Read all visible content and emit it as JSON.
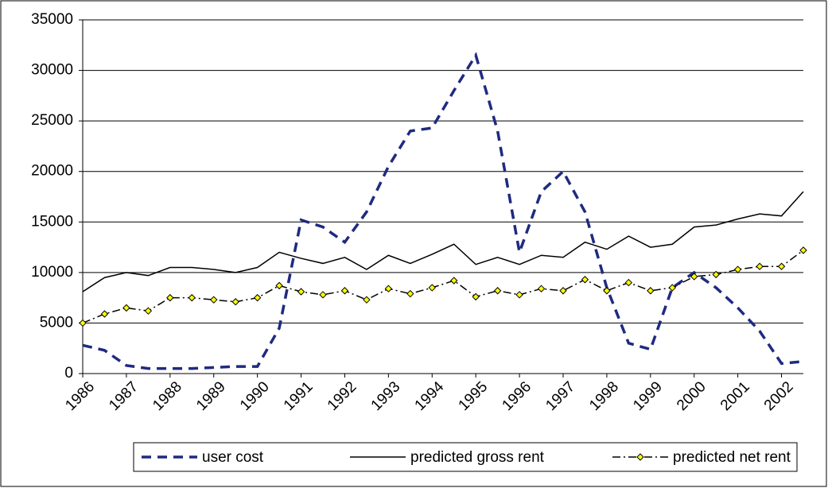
{
  "chart_data": {
    "type": "line",
    "categories": [
      "1986",
      null,
      "1987",
      null,
      "1988",
      null,
      "1989",
      null,
      "1990",
      null,
      "1991",
      null,
      "1992",
      null,
      "1993",
      null,
      "1994",
      null,
      "1995",
      null,
      "1996",
      null,
      "1997",
      null,
      "1998",
      null,
      "1999",
      null,
      "2000",
      null,
      "2001",
      null,
      "2002",
      null
    ],
    "series": [
      {
        "name": "user cost",
        "color": "#1f2a80",
        "dash": "dashed",
        "values": [
          2800,
          2300,
          800,
          500,
          500,
          500,
          600,
          700,
          700,
          4500,
          15200,
          14500,
          13000,
          16000,
          20500,
          24000,
          24300,
          28000,
          31500,
          24000,
          12000,
          18000,
          20000,
          16000,
          8500,
          3000,
          2400,
          8500,
          10000,
          8500,
          6500,
          4200,
          1000,
          1200
        ]
      },
      {
        "name": "predicted gross rent",
        "color": "#000000",
        "dash": "solid",
        "values": [
          8100,
          9500,
          10000,
          9700,
          10500,
          10500,
          10300,
          10000,
          10500,
          12000,
          11400,
          10900,
          11500,
          10300,
          11700,
          10900,
          11800,
          12800,
          10800,
          11500,
          10800,
          11700,
          11500,
          13000,
          12300,
          13600,
          12500,
          12800,
          14500,
          14700,
          15300,
          15800,
          15600,
          18000
        ]
      },
      {
        "name": "predicted net rent",
        "color": "#000000",
        "dash": "dashdot",
        "marker": "diamond",
        "marker_color": "#ffff00",
        "values": [
          5000,
          5900,
          6500,
          6200,
          7500,
          7500,
          7300,
          7100,
          7500,
          8700,
          8100,
          7800,
          8200,
          7300,
          8400,
          7900,
          8500,
          9200,
          7600,
          8200,
          7800,
          8400,
          8200,
          9300,
          8200,
          9000,
          8200,
          8500,
          9600,
          9800,
          10300,
          10600,
          10600,
          12200
        ]
      }
    ],
    "ylim": [
      0,
      35000
    ],
    "yticks": [
      0,
      5000,
      10000,
      15000,
      20000,
      25000,
      30000,
      35000
    ],
    "grid": true,
    "legend": "bottom"
  }
}
